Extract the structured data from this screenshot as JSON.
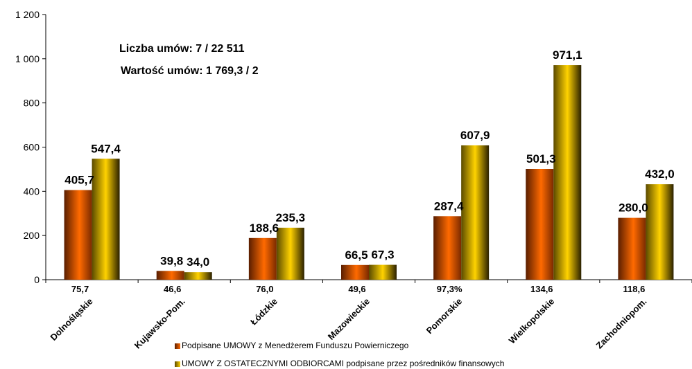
{
  "colors": {
    "series1_gradient": [
      "#5a1e00",
      "#ff6a00",
      "#2a0c00"
    ],
    "series2_gradient": [
      "#4a4000",
      "#ffd200",
      "#3a2e00"
    ],
    "axis": "#000000"
  },
  "annotations": {
    "line1": "Liczba umów: 7  /  22 511",
    "line2": "Wartość umów: 1 769,3  /  2"
  },
  "legend": {
    "series1": "Podpisane UMOWY z Menedżerem Funduszu Powierniczego",
    "series2": "UMOWY Z OSTATECZNYMI ODBIORCAMI podpisane przez pośredników finansowych"
  },
  "chart_data": {
    "type": "bar",
    "categories": [
      "Dolnośląskie",
      "Kujawsko-Pom.",
      "Łódzkie",
      "Mazowieckie",
      "Pomorskie",
      "Wielkopolskie",
      "Zachodniopom."
    ],
    "below_labels": [
      "75,7",
      "46,6",
      "76,0",
      "49,6",
      "97,3%",
      "134,6",
      "118,6"
    ],
    "series": [
      {
        "name": "Podpisane UMOWY z Menedżerem Funduszu Powierniczego",
        "values": [
          405.7,
          39.8,
          188.6,
          66.5,
          287.4,
          501.3,
          280.0
        ],
        "labels": [
          "405,7",
          "39,8",
          "188,6",
          "66,5",
          "287,4",
          "501,3",
          "280,0"
        ]
      },
      {
        "name": "UMOWY Z OSTATECZNYMI ODBIORCAMI podpisane przez pośredników finansowych",
        "values": [
          547.4,
          34.0,
          235.3,
          67.3,
          607.9,
          971.1,
          432.0
        ],
        "labels": [
          "547,4",
          "34,0",
          "235,3",
          "67,3",
          "607,9",
          "971,1",
          "432,0"
        ]
      }
    ],
    "yticks": [
      "0",
      "200",
      "400",
      "600",
      "800",
      "1 000",
      "1 200"
    ],
    "ylim": [
      0,
      1200
    ],
    "grid": false,
    "legend_position": "bottom"
  }
}
